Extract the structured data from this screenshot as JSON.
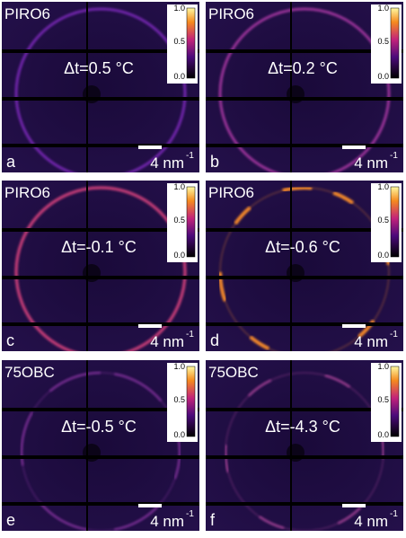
{
  "panels": [
    {
      "label": "a",
      "sample": "PIRO6",
      "delta_t": "Δt=0.5 °C",
      "scale_bar": "4 nm",
      "scale_unit_exponent": "-1",
      "colorbar_ticks": [
        "1.0",
        "0.5",
        "0.0"
      ]
    },
    {
      "label": "b",
      "sample": "PIRO6",
      "delta_t": "Δt=0.2 °C",
      "scale_bar": "4 nm",
      "scale_unit_exponent": "-1",
      "colorbar_ticks": [
        "1.0",
        "0.5",
        "0.0"
      ]
    },
    {
      "label": "c",
      "sample": "PIRO6",
      "delta_t": "Δt=-0.1 °C",
      "scale_bar": "4 nm",
      "scale_unit_exponent": "-1",
      "colorbar_ticks": [
        "1.0",
        "0.5",
        "0.0"
      ]
    },
    {
      "label": "d",
      "sample": "PIRO6",
      "delta_t": "Δt=-0.6 °C",
      "scale_bar": "4 nm",
      "scale_unit_exponent": "-1",
      "colorbar_ticks": [
        "1.0",
        "0.5",
        "0.0"
      ]
    },
    {
      "label": "e",
      "sample": "75OBC",
      "delta_t": "Δt=-0.5 °C",
      "scale_bar": "4 nm",
      "scale_unit_exponent": "-1",
      "colorbar_ticks": [
        "1.0",
        "0.5",
        "0.0"
      ]
    },
    {
      "label": "f",
      "sample": "75OBC",
      "delta_t": "Δt=-4.3 °C",
      "scale_bar": "4 nm",
      "scale_unit_exponent": "-1",
      "colorbar_ticks": [
        "1.0",
        "0.5",
        "0.0"
      ]
    }
  ]
}
